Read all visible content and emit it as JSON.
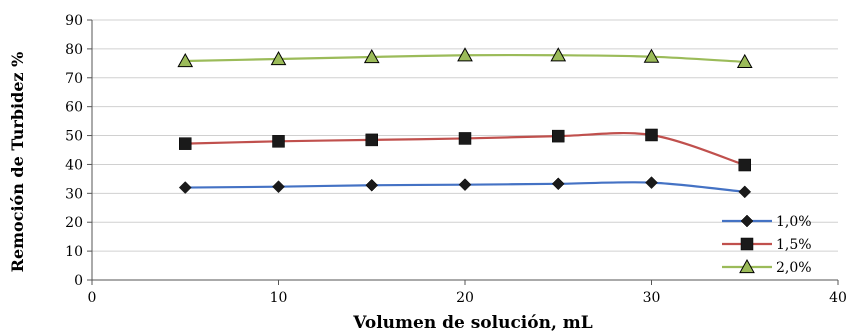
{
  "chart_data": {
    "type": "line",
    "title": "",
    "xlabel": "Volumen de solución, mL",
    "ylabel": "Remoción de Turbidez %",
    "xlim": [
      0,
      40
    ],
    "ylim": [
      0,
      90
    ],
    "x_ticks": [
      "0",
      "10",
      "20",
      "30",
      "40"
    ],
    "y_ticks": [
      "0",
      "10",
      "20",
      "30",
      "40",
      "50",
      "60",
      "70",
      "80",
      "90"
    ],
    "grid": true,
    "legend_position": "bottom-right",
    "x": [
      5,
      10,
      15,
      20,
      25,
      30,
      35
    ],
    "series": [
      {
        "name": "1,0%",
        "color": "#4472C4",
        "marker": "diamond",
        "values": [
          32.0,
          32.3,
          32.8,
          33.0,
          33.3,
          33.7,
          30.5
        ]
      },
      {
        "name": "1,5%",
        "color": "#C0504D",
        "marker": "square",
        "values": [
          47.2,
          48.0,
          48.5,
          49.0,
          49.8,
          50.2,
          39.8
        ]
      },
      {
        "name": "2,0%",
        "color": "#9BBB59",
        "marker": "triangle",
        "values": [
          75.8,
          76.5,
          77.2,
          77.8,
          77.8,
          77.3,
          75.5
        ]
      }
    ]
  }
}
